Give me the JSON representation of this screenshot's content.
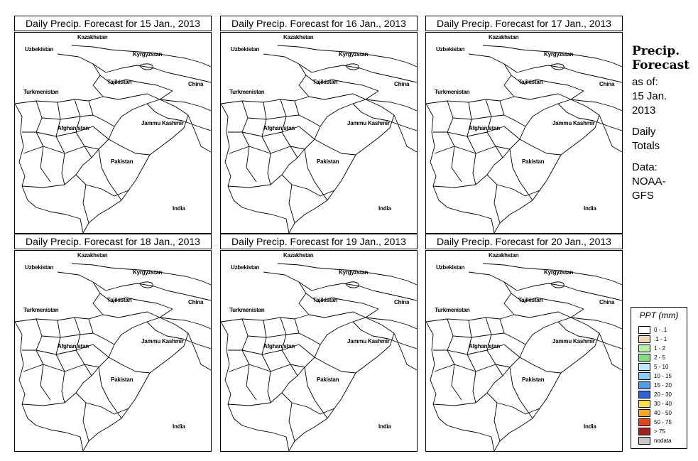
{
  "panels": [
    {
      "title": "Daily Precip. Forecast for  15 Jan., 2013"
    },
    {
      "title": "Daily Precip. Forecast for  16 Jan., 2013"
    },
    {
      "title": "Daily Precip. Forecast for  17 Jan., 2013"
    },
    {
      "title": "Daily Precip. Forecast for  18 Jan., 2013"
    },
    {
      "title": "Daily Precip. Forecast for  19 Jan., 2013"
    },
    {
      "title": "Daily Precip. Forecast for  20 Jan., 2013"
    }
  ],
  "map_labels": {
    "kazakhstan": "Kazakhstan",
    "uzbekistan": "Uzbekistan",
    "kyrgyzstan": "Kyrgyzstan",
    "tajikistan": "Tajikistan",
    "china": "China",
    "turkmenistan": "Turkmenistan",
    "afghanistan": "Afghanistan",
    "jammu_kashmir": "Jammu Kashmir",
    "pakistan": "Pakistan",
    "india": "India"
  },
  "side": {
    "title_line1": "Precip.",
    "title_line2": "Forecast",
    "asof_line1": "as of:",
    "asof_line2": "15 Jan.",
    "asof_line3": "2013",
    "totals_line1": "Daily",
    "totals_line2": "Totals",
    "data_line1": "Data:",
    "data_line2": "NOAA-",
    "data_line3": "GFS"
  },
  "legend": {
    "title": "PPT (mm)",
    "items": [
      {
        "label": "0 - .1",
        "color": "#ffffff"
      },
      {
        "label": ".1 - 1",
        "color": "#ead9b8"
      },
      {
        "label": "1 - 2",
        "color": "#b6f0a6"
      },
      {
        "label": "2 - 5",
        "color": "#7ee37e"
      },
      {
        "label": "5 - 10",
        "color": "#bfe6f7"
      },
      {
        "label": "10 - 15",
        "color": "#8ecbf2"
      },
      {
        "label": "15 - 20",
        "color": "#4f9fe8"
      },
      {
        "label": "20 - 30",
        "color": "#2a64d6"
      },
      {
        "label": "30 - 40",
        "color": "#f7e04a"
      },
      {
        "label": "40 - 50",
        "color": "#f5a623"
      },
      {
        "label": "50 - 75",
        "color": "#e8421b"
      },
      {
        "label": "> 75",
        "color": "#a0221a"
      },
      {
        "label": "nodata",
        "color": "#c8c8c8"
      }
    ]
  }
}
